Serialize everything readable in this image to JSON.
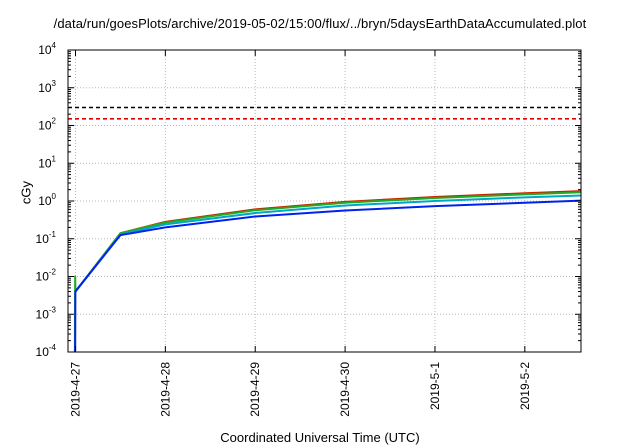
{
  "chart_data": {
    "type": "line",
    "title": "/data/run/goesPlots/archive/2019-05-02/15:00/flux/../bryn/5daysEarthDataAccumulated.plot",
    "xlabel": "Coordinated Universal Time (UTC)",
    "ylabel": "cGy",
    "y_scale": "log",
    "ylim": [
      0.0001,
      10000
    ],
    "xlim": [
      "2019-04-26T22:00",
      "2019-05-02T15:00"
    ],
    "grid": true,
    "y_ticks": [
      {
        "base": "10",
        "exp": "-4"
      },
      {
        "base": "10",
        "exp": "-3"
      },
      {
        "base": "10",
        "exp": "-2"
      },
      {
        "base": "10",
        "exp": "-1"
      },
      {
        "base": "10",
        "exp": "0"
      },
      {
        "base": "10",
        "exp": "1"
      },
      {
        "base": "10",
        "exp": "2"
      },
      {
        "base": "10",
        "exp": "3"
      },
      {
        "base": "10",
        "exp": "4"
      }
    ],
    "x_ticks": [
      "2019-4-27",
      "2019-4-28",
      "2019-4-29",
      "2019-4-30",
      "2019-5-1",
      "2019-5-2"
    ],
    "reference_lines": [
      {
        "y": 300,
        "color": "#000000",
        "style": "dashed"
      },
      {
        "y": 150,
        "color": "#dd0000",
        "style": "dashed"
      }
    ],
    "series": [
      {
        "color": "#cc2200",
        "points": [
          [
            "2019-04-27T00:00",
            0.004
          ],
          [
            "2019-04-27T12:00",
            0.14
          ],
          [
            "2019-04-28T00:00",
            0.28
          ],
          [
            "2019-04-29T00:00",
            0.6
          ],
          [
            "2019-04-30T00:00",
            0.95
          ],
          [
            "2019-05-01T00:00",
            1.28
          ],
          [
            "2019-05-02T00:00",
            1.6
          ],
          [
            "2019-05-02T15:00",
            1.82
          ]
        ]
      },
      {
        "color": "#22aa22",
        "points": [
          [
            "2019-04-26T23:50",
            0.0001
          ],
          [
            "2019-04-26T23:55",
            0.01
          ],
          [
            "2019-04-27T00:00",
            0.004
          ],
          [
            "2019-04-27T12:00",
            0.14
          ],
          [
            "2019-04-28T00:00",
            0.27
          ],
          [
            "2019-04-29T00:00",
            0.57
          ],
          [
            "2019-04-30T00:00",
            0.9
          ],
          [
            "2019-05-01T00:00",
            1.2
          ],
          [
            "2019-05-02T00:00",
            1.5
          ],
          [
            "2019-05-02T15:00",
            1.7
          ]
        ]
      },
      {
        "color": "#00a8c8",
        "points": [
          [
            "2019-04-27T00:00",
            0.004
          ],
          [
            "2019-04-27T12:00",
            0.13
          ],
          [
            "2019-04-28T00:00",
            0.24
          ],
          [
            "2019-04-29T00:00",
            0.48
          ],
          [
            "2019-04-30T00:00",
            0.76
          ],
          [
            "2019-05-01T00:00",
            1.0
          ],
          [
            "2019-05-02T00:00",
            1.25
          ],
          [
            "2019-05-02T15:00",
            1.4
          ]
        ]
      },
      {
        "color": "#0022ee",
        "points": [
          [
            "2019-04-26T23:55",
            0.0001
          ],
          [
            "2019-04-26T23:58",
            0.004
          ],
          [
            "2019-04-27T12:00",
            0.125
          ],
          [
            "2019-04-28T00:00",
            0.2
          ],
          [
            "2019-04-29T00:00",
            0.39
          ],
          [
            "2019-04-30T00:00",
            0.56
          ],
          [
            "2019-05-01T00:00",
            0.73
          ],
          [
            "2019-05-02T00:00",
            0.9
          ],
          [
            "2019-05-02T15:00",
            1.02
          ]
        ]
      }
    ]
  }
}
